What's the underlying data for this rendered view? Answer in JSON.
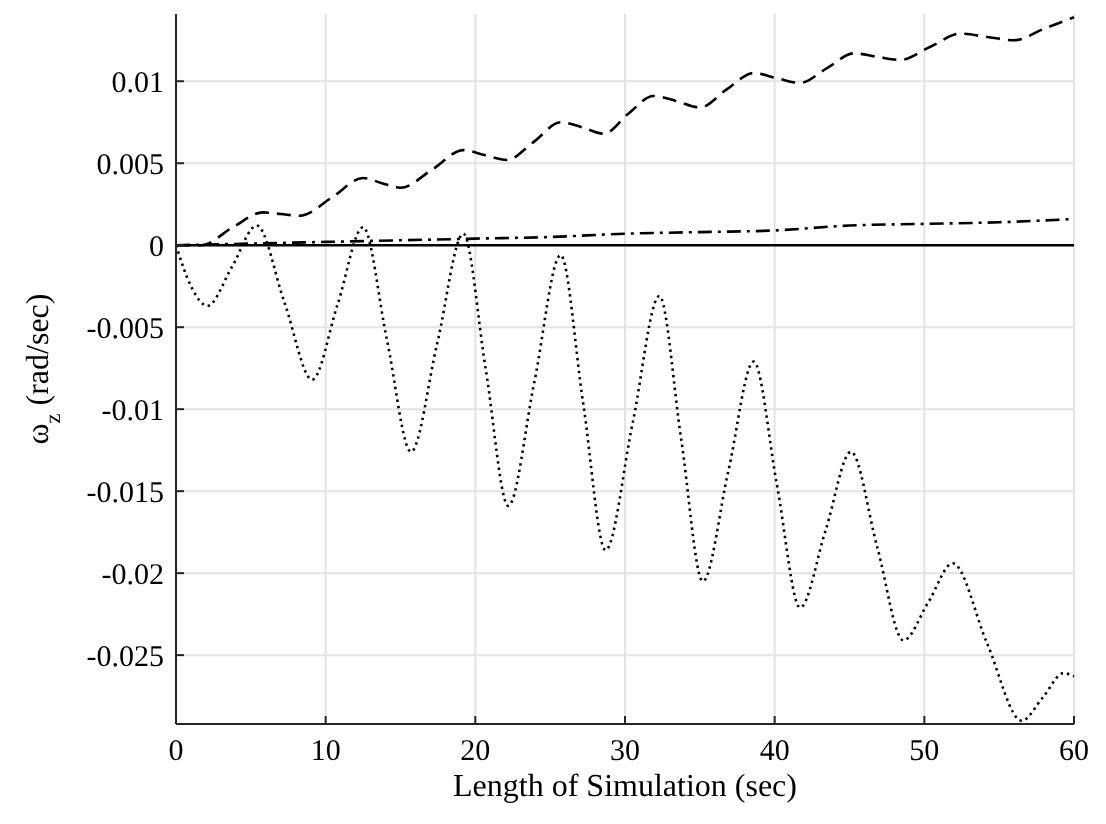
{
  "chart_data": {
    "type": "line",
    "xlabel": "Length of Simulation (sec)",
    "ylabel": "ω$_{z}$ (rad/sec)",
    "xlim": [
      0,
      60
    ],
    "ylim": [
      -0.0292,
      0.0141
    ],
    "xticks": [
      0,
      10,
      20,
      30,
      40,
      50,
      60
    ],
    "yticks": [
      0.01,
      0.005,
      0,
      -0.005,
      -0.01,
      -0.015,
      -0.02,
      -0.025
    ],
    "grid": true,
    "series": [
      {
        "color": "#000000",
        "line_style": "solid",
        "x": [
          0,
          60
        ],
        "values": [
          0,
          0
        ]
      },
      {
        "color": "#000000",
        "line_style": "dashed",
        "x": [
          0,
          1.7,
          3.8,
          5.8,
          7,
          8.3,
          10.4,
          12.5,
          13.7,
          15,
          17.1,
          19.2,
          20.6,
          22.1,
          23.9,
          25.7,
          27.1,
          28.6,
          30.2,
          31.9,
          33.4,
          35,
          36.8,
          38.6,
          40.1,
          41.7,
          43.5,
          45.3,
          46.8,
          48.4,
          50.4,
          52.4,
          54.2,
          56,
          58,
          60
        ],
        "values": [
          0,
          0,
          0.0011,
          0.002,
          0.0019,
          0.0018,
          0.0029,
          0.0041,
          0.0038,
          0.0035,
          0.0046,
          0.0058,
          0.0055,
          0.0052,
          0.0063,
          0.0075,
          0.0072,
          0.0068,
          0.008,
          0.0091,
          0.0088,
          0.0084,
          0.0095,
          0.0105,
          0.0102,
          0.0099,
          0.0108,
          0.0117,
          0.0115,
          0.0113,
          0.0121,
          0.0129,
          0.0127,
          0.0125,
          0.0132,
          0.0139
        ]
      },
      {
        "color": "#000000",
        "line_style": "dashdot",
        "x": [
          0,
          5,
          10,
          15,
          20,
          25,
          30,
          35,
          40,
          45,
          50,
          55,
          60
        ],
        "values": [
          0,
          0.0001,
          0.0002,
          0.0003,
          0.0004,
          0.0005,
          0.0007,
          0.0008,
          0.0009,
          0.0012,
          0.0013,
          0.0014,
          0.0016
        ]
      },
      {
        "color": "#000000",
        "line_style": "dotted",
        "x": [
          0,
          1,
          2.1,
          3.75,
          5.4,
          7.25,
          9.1,
          10.8,
          12.5,
          14.1,
          15.7,
          17.45,
          19.2,
          20.7,
          22.2,
          23.95,
          25.7,
          27.2,
          28.7,
          30.5,
          32.3,
          33.75,
          35.2,
          36.9,
          38.6,
          40.15,
          41.7,
          43.4,
          45.1,
          46.85,
          48.6,
          50.25,
          51.9,
          54.2,
          56.5,
          57.9,
          59.3,
          60
        ],
        "values": [
          0,
          -0.0025,
          -0.0037,
          -0.0013,
          0.0012,
          -0.0035,
          -0.0082,
          -0.0036,
          0.0011,
          -0.0058,
          -0.0126,
          -0.006,
          0.0007,
          -0.0076,
          -0.0159,
          -0.0083,
          -0.0006,
          -0.0096,
          -0.0186,
          -0.0109,
          -0.0031,
          -0.0118,
          -0.0205,
          -0.0138,
          -0.0071,
          -0.0146,
          -0.0221,
          -0.0174,
          -0.0126,
          -0.0184,
          -0.0241,
          -0.0218,
          -0.0194,
          -0.0243,
          -0.029,
          -0.0276,
          -0.0261,
          -0.0263
        ]
      }
    ]
  }
}
